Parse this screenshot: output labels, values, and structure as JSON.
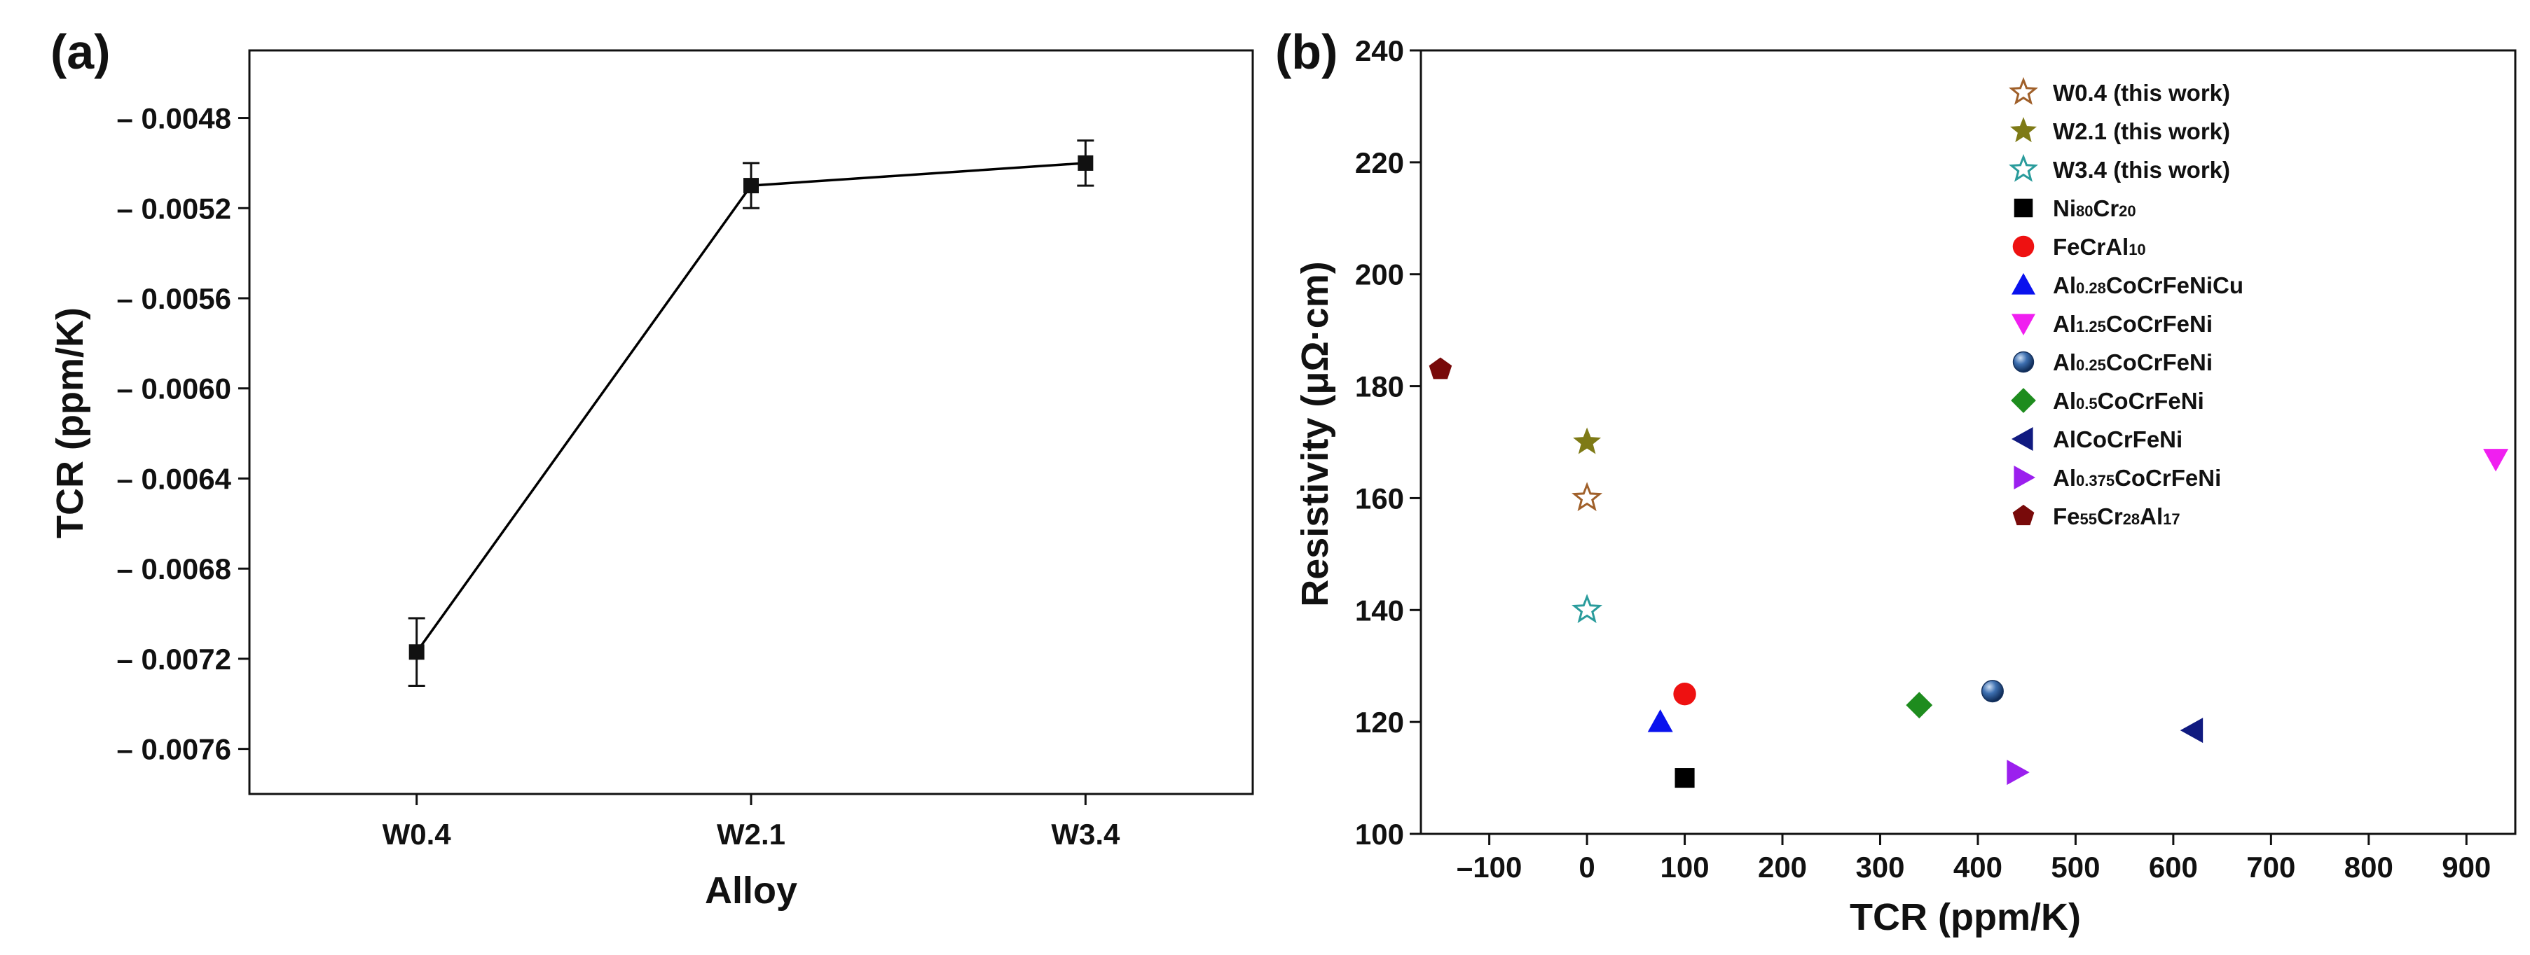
{
  "chart_data": [
    {
      "type": "line",
      "panel_label": "(a)",
      "xlabel": "Alloy",
      "ylabel": "TCR (ppm/K)",
      "categories": [
        "W0.4",
        "W2.1",
        "W3.4"
      ],
      "values": [
        -0.00717,
        -0.0051,
        -0.005
      ],
      "error": [
        0.00015,
        0.0001,
        0.0001
      ],
      "ylim": [
        -0.0078,
        -0.0045
      ],
      "yticks": [
        -0.0048,
        -0.0052,
        -0.0056,
        -0.006,
        -0.0064,
        -0.0068,
        -0.0072,
        -0.0076
      ],
      "ytick_labels": [
        "– 0.0048",
        "– 0.0052",
        "– 0.0056",
        "– 0.0060",
        "– 0.0064",
        "– 0.0068",
        "– 0.0072",
        "– 0.0076"
      ],
      "marker": "square",
      "color": "#000000"
    },
    {
      "type": "scatter",
      "panel_label": "(b)",
      "xlabel": "TCR (ppm/K)",
      "ylabel": "Resistivity (μΩ·cm)",
      "xlim": [
        -170,
        950
      ],
      "ylim": [
        100,
        240
      ],
      "xticks": [
        -100,
        0,
        100,
        200,
        300,
        400,
        500,
        600,
        700,
        800,
        900
      ],
      "xtick_labels": [
        "–100",
        "0",
        "100",
        "200",
        "300",
        "400",
        "500",
        "600",
        "700",
        "800",
        "900"
      ],
      "yticks": [
        100,
        120,
        140,
        160,
        180,
        200,
        220,
        240
      ],
      "ytick_labels": [
        "100",
        "120",
        "140",
        "160",
        "180",
        "200",
        "220",
        "240"
      ],
      "legend_position": "top-right",
      "series": [
        {
          "name": "W0.4 (this work)",
          "parts": [
            {
              "t": "W0.4 (this work)"
            }
          ],
          "x": 0,
          "y": 160,
          "marker": "star-open",
          "color": "#A0602A"
        },
        {
          "name": "W2.1 (this work)",
          "parts": [
            {
              "t": "W2.1 (this work)"
            }
          ],
          "x": 0,
          "y": 170,
          "marker": "star",
          "color": "#7E7A16"
        },
        {
          "name": "W3.4 (this work)",
          "parts": [
            {
              "t": "W3.4 (this work)"
            }
          ],
          "x": 0,
          "y": 140,
          "marker": "star-open",
          "color": "#2A9C9C"
        },
        {
          "name": "Ni80Cr20",
          "parts": [
            {
              "t": "Ni"
            },
            {
              "t": "80",
              "sub": true
            },
            {
              "t": "Cr"
            },
            {
              "t": "20",
              "sub": true
            }
          ],
          "x": 100,
          "y": 110,
          "marker": "square",
          "color": "#000000"
        },
        {
          "name": "FeCrAl10",
          "parts": [
            {
              "t": "FeCrAl"
            },
            {
              "t": "10",
              "sub": true
            }
          ],
          "x": 100,
          "y": 125,
          "marker": "circle",
          "color": "#EE1111"
        },
        {
          "name": "Al0.28CoCrFeNiCu",
          "parts": [
            {
              "t": "Al"
            },
            {
              "t": "0.28",
              "sub": true
            },
            {
              "t": "CoCrFeNiCu"
            }
          ],
          "x": 75,
          "y": 120,
          "marker": "triangle-up",
          "color": "#0A12EE"
        },
        {
          "name": "Al1.25CoCrFeNi",
          "parts": [
            {
              "t": "Al"
            },
            {
              "t": "1.25",
              "sub": true
            },
            {
              "t": "CoCrFeNi"
            }
          ],
          "x": 930,
          "y": 167,
          "marker": "triangle-down",
          "color": "#F01FF0"
        },
        {
          "name": "Al0.25CoCrFeNi",
          "parts": [
            {
              "t": "Al"
            },
            {
              "t": "0.25",
              "sub": true
            },
            {
              "t": "CoCrFeNi"
            }
          ],
          "x": 415,
          "y": 125.5,
          "marker": "sphere",
          "color": "#3D6FB0"
        },
        {
          "name": "Al0.5CoCrFeNi",
          "parts": [
            {
              "t": "Al"
            },
            {
              "t": "0.5",
              "sub": true
            },
            {
              "t": "CoCrFeNi"
            }
          ],
          "x": 340,
          "y": 123,
          "marker": "diamond",
          "color": "#1E8C1E"
        },
        {
          "name": "AlCoCrFeNi",
          "parts": [
            {
              "t": "AlCoCrFeNi"
            }
          ],
          "x": 620,
          "y": 118.5,
          "marker": "triangle-left",
          "color": "#101A80"
        },
        {
          "name": "Al0.375CoCrFeNi",
          "parts": [
            {
              "t": "Al"
            },
            {
              "t": "0.375",
              "sub": true
            },
            {
              "t": "CoCrFeNi"
            }
          ],
          "x": 440,
          "y": 111,
          "marker": "triangle-right",
          "color": "#9B1FEE"
        },
        {
          "name": "Fe55Cr28Al17",
          "parts": [
            {
              "t": "Fe"
            },
            {
              "t": "55",
              "sub": true
            },
            {
              "t": "Cr"
            },
            {
              "t": "28",
              "sub": true
            },
            {
              "t": "Al"
            },
            {
              "t": "17",
              "sub": true
            }
          ],
          "x": -150,
          "y": 183,
          "marker": "pentagon",
          "color": "#780A0A"
        }
      ]
    }
  ]
}
